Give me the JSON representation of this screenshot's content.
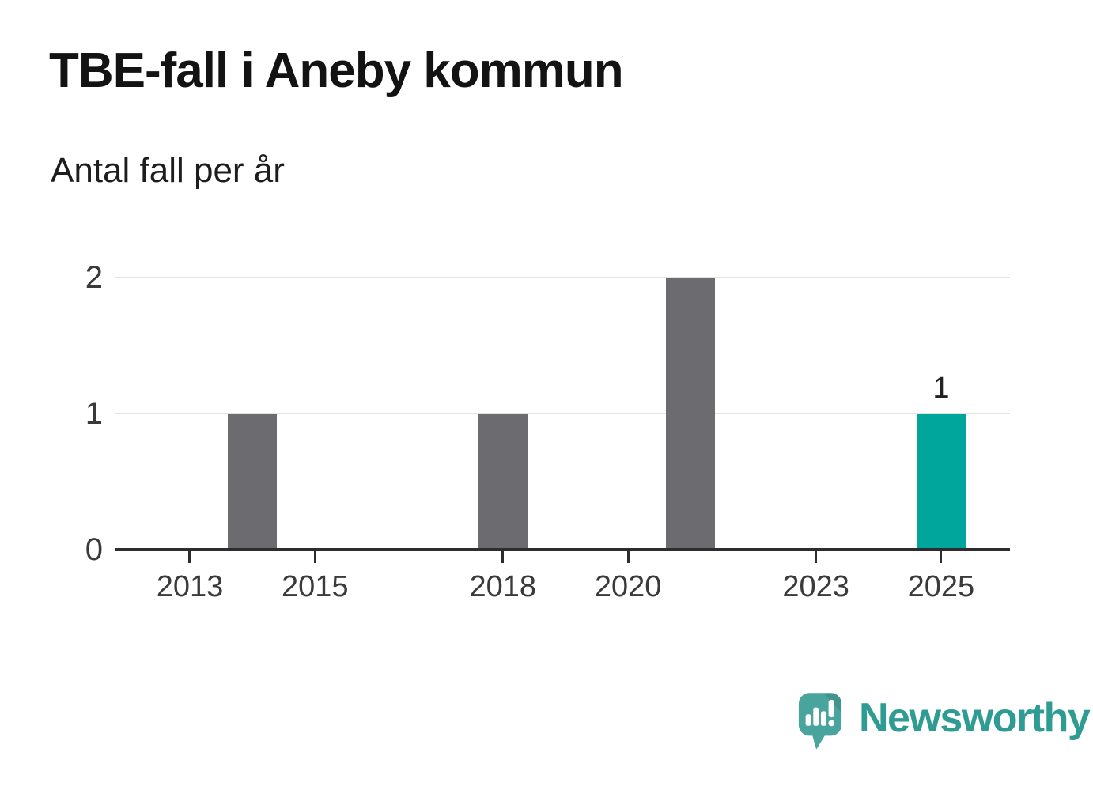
{
  "header": {
    "title": "TBE-fall i Aneby kommun",
    "subtitle": "Antal fall per år"
  },
  "chart_data": {
    "type": "bar",
    "title": "TBE-fall i Aneby kommun",
    "subtitle": "Antal fall per år",
    "ylabel": "Antal fall per år",
    "xlabel": "",
    "points": [
      {
        "year": 2014,
        "value": 1,
        "color": "default"
      },
      {
        "year": 2018,
        "value": 1,
        "color": "default"
      },
      {
        "year": 2021,
        "value": 2,
        "color": "default"
      },
      {
        "year": 2025,
        "value": 1,
        "color": "highlight"
      }
    ],
    "data_labels": [
      {
        "year": 2025,
        "text": "1"
      }
    ],
    "x_ticks": [
      {
        "year": 2013,
        "label": "2013"
      },
      {
        "year": 2015,
        "label": "2015"
      },
      {
        "year": 2018,
        "label": "2018"
      },
      {
        "year": 2020,
        "label": "2020"
      },
      {
        "year": 2023,
        "label": "2023"
      },
      {
        "year": 2025,
        "label": "2025"
      }
    ],
    "y_ticks": [
      {
        "value": 0,
        "label": "0"
      },
      {
        "value": 1,
        "label": "1"
      },
      {
        "value": 2,
        "label": "2"
      }
    ],
    "xlim": [
      2011.8,
      2026.1
    ],
    "ylim": [
      0,
      2
    ],
    "grid": "horizontal-only",
    "legend": "none",
    "colors": {
      "bar_default": "#6b6b70",
      "bar_highlight": "#00a59b",
      "gridline": "#e3e3e3",
      "axis_line": "#2d2d2d",
      "tick_label": "#3a3a3a"
    }
  },
  "footer": {
    "brand": "Newsworthy",
    "brand_color": "#2f9c93",
    "logo": {
      "icon": "newsworthy-speech-bubble-chart-icon",
      "bubble_color": "#48a49c",
      "glyph_color": "#ffffff"
    }
  }
}
